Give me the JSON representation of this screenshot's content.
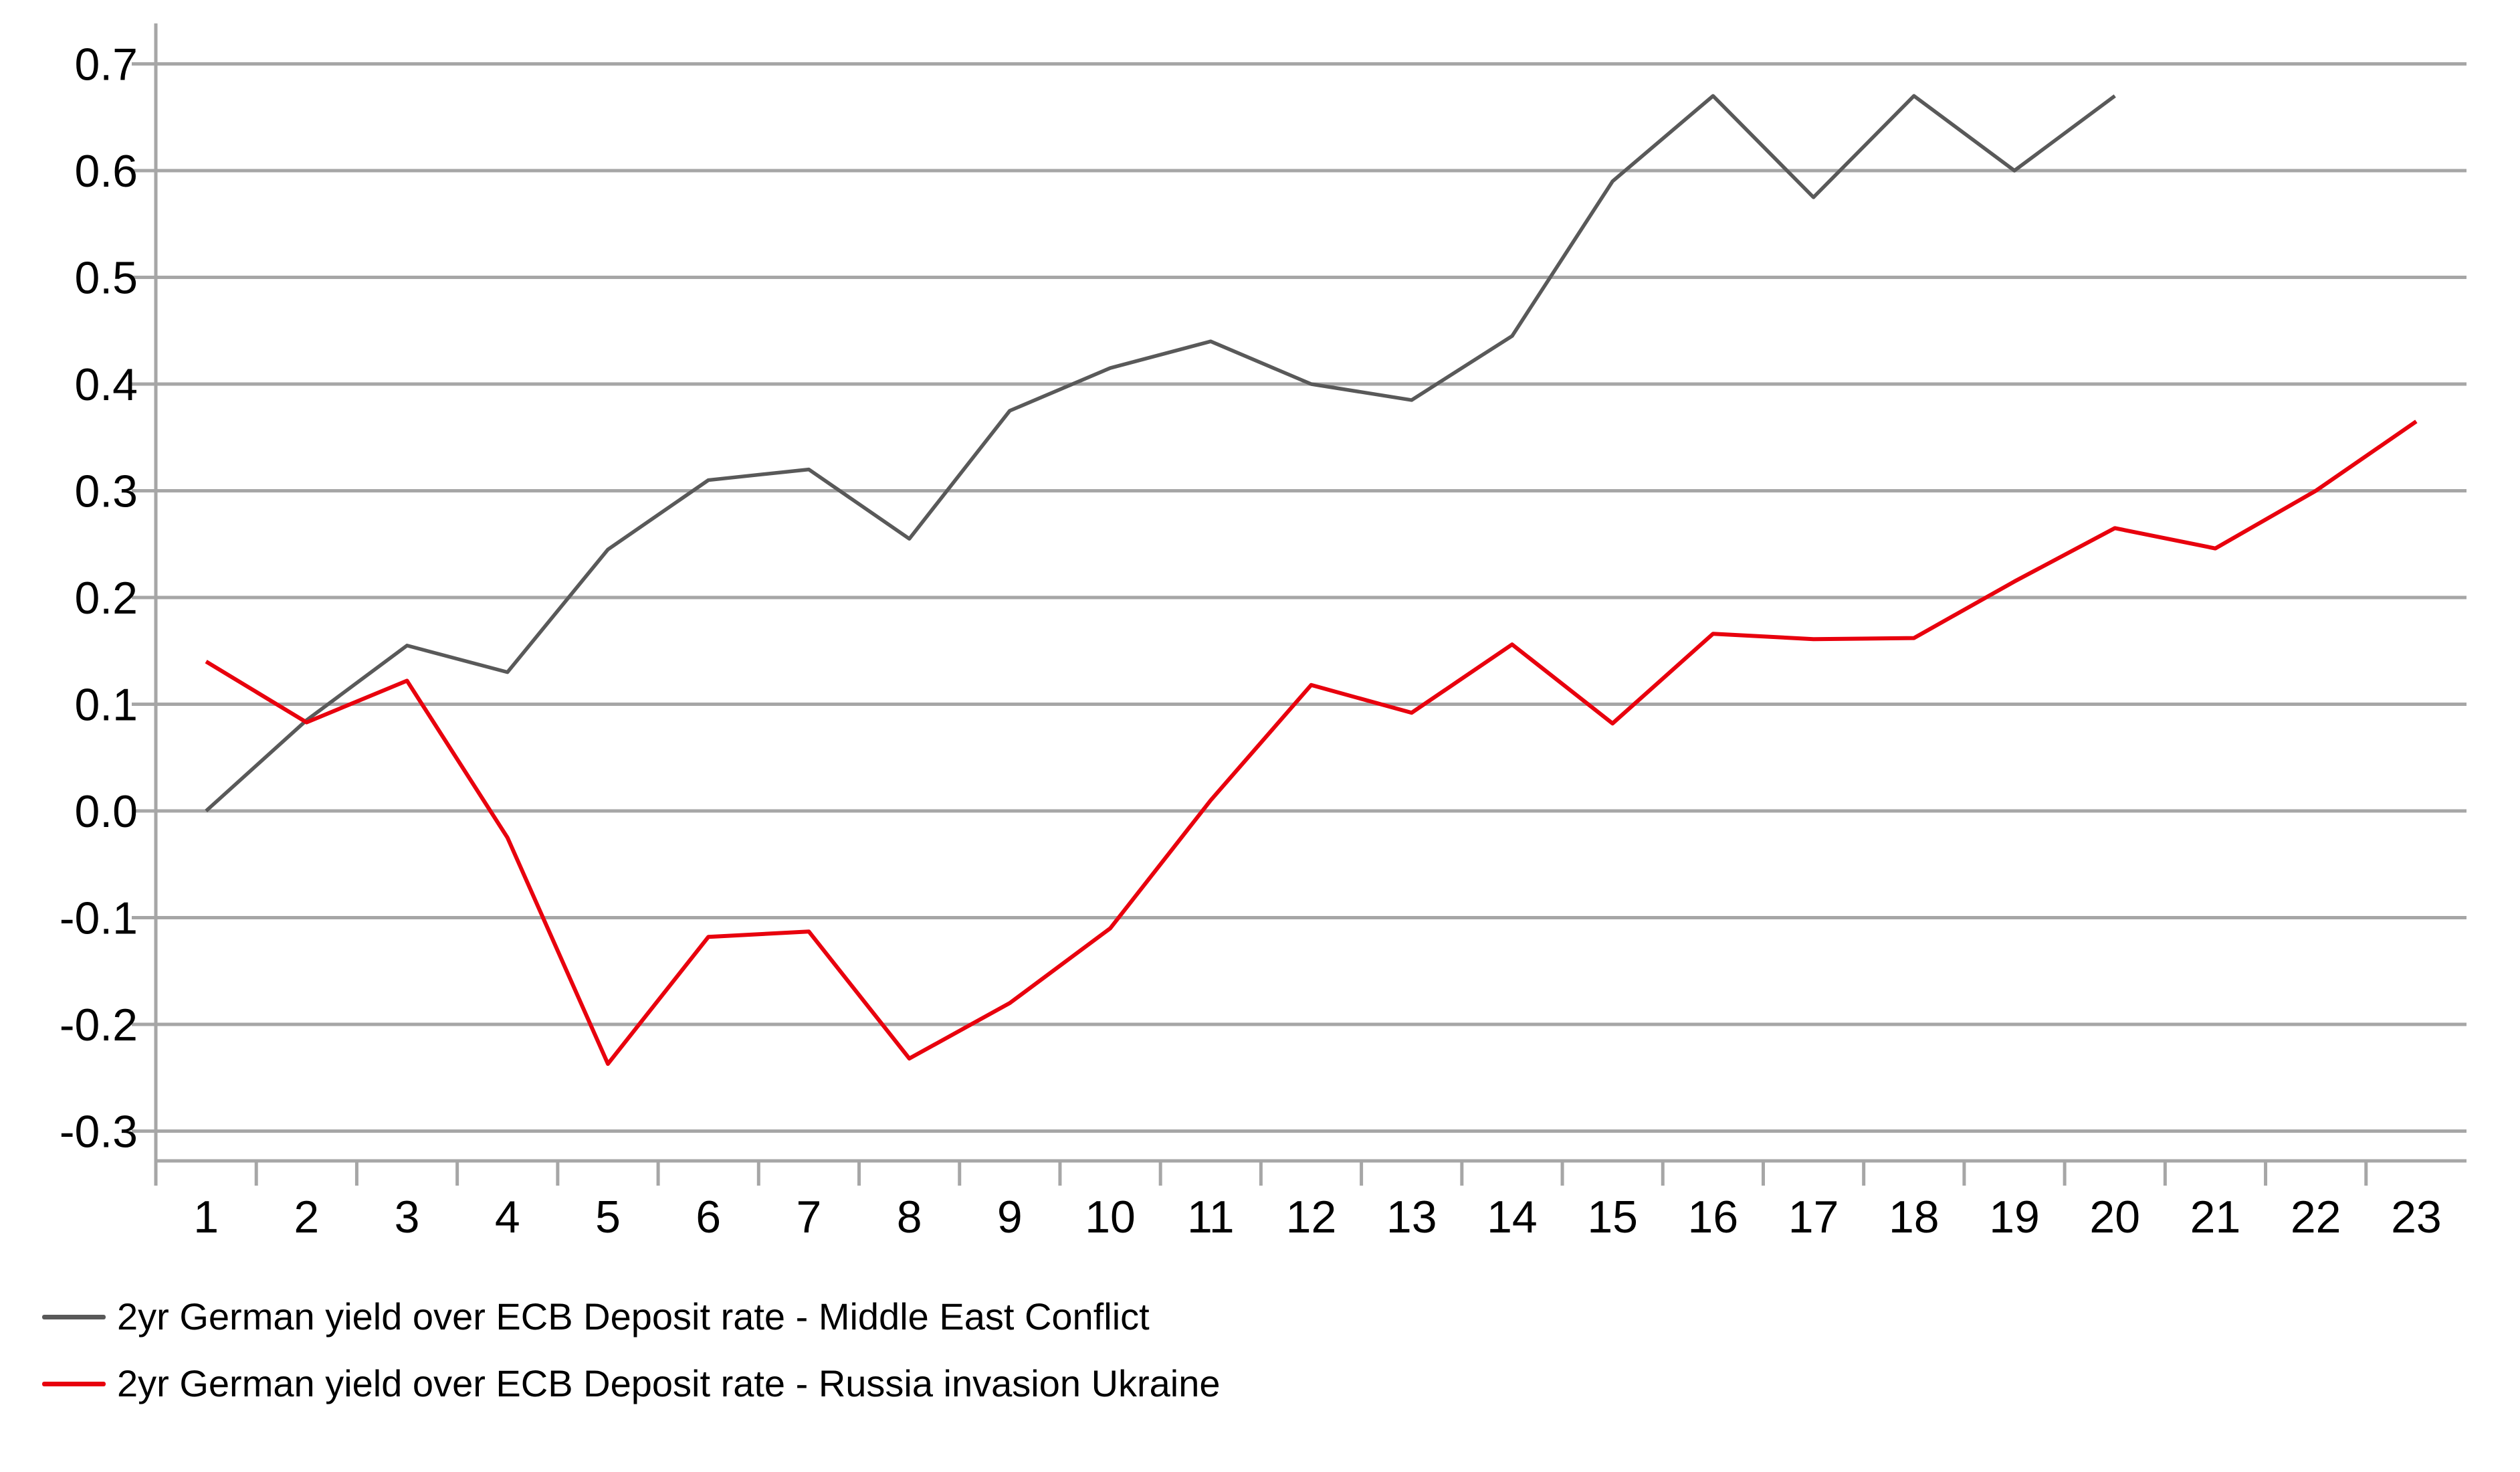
{
  "chart_data": {
    "type": "line",
    "title": "",
    "xlabel": "",
    "ylabel": "",
    "categories": [
      "1",
      "2",
      "3",
      "4",
      "5",
      "6",
      "7",
      "8",
      "9",
      "10",
      "11",
      "12",
      "13",
      "14",
      "15",
      "16",
      "17",
      "18",
      "19",
      "20",
      "21",
      "22",
      "23"
    ],
    "series": [
      {
        "name": "2yr German yield over ECB Deposit rate - Middle East Conflict",
        "color": "#595959",
        "values": [
          0.0,
          0.085,
          0.155,
          0.13,
          0.245,
          0.31,
          0.32,
          0.255,
          0.375,
          0.415,
          0.44,
          0.4,
          0.385,
          0.445,
          0.59,
          0.67,
          0.575,
          0.67,
          0.6,
          0.67,
          null,
          null,
          null
        ]
      },
      {
        "name": "2yr German yield over ECB Deposit rate - Russia invasion Ukraine",
        "color": "#E8000D",
        "values": [
          0.14,
          0.083,
          0.122,
          -0.025,
          -0.237,
          -0.118,
          -0.113,
          -0.232,
          -0.18,
          -0.11,
          0.01,
          0.118,
          0.092,
          0.156,
          0.082,
          0.166,
          0.161,
          0.162,
          0.215,
          0.265,
          0.246,
          0.3,
          0.365
        ]
      }
    ],
    "ylim": [
      -0.3,
      0.7
    ],
    "ytick_labels": [
      "0.7",
      "0.6",
      "0.5",
      "0.4",
      "0.3",
      "0.2",
      "0.1",
      "0.0",
      "-0.1",
      "-0.2",
      "-0.3"
    ],
    "grid": "horizontal",
    "legend_position": "bottom-left",
    "colors": {
      "grid": "#A6A6A6",
      "axis": "#A6A6A6",
      "text": "#000000",
      "background": "#FFFFFF"
    }
  }
}
